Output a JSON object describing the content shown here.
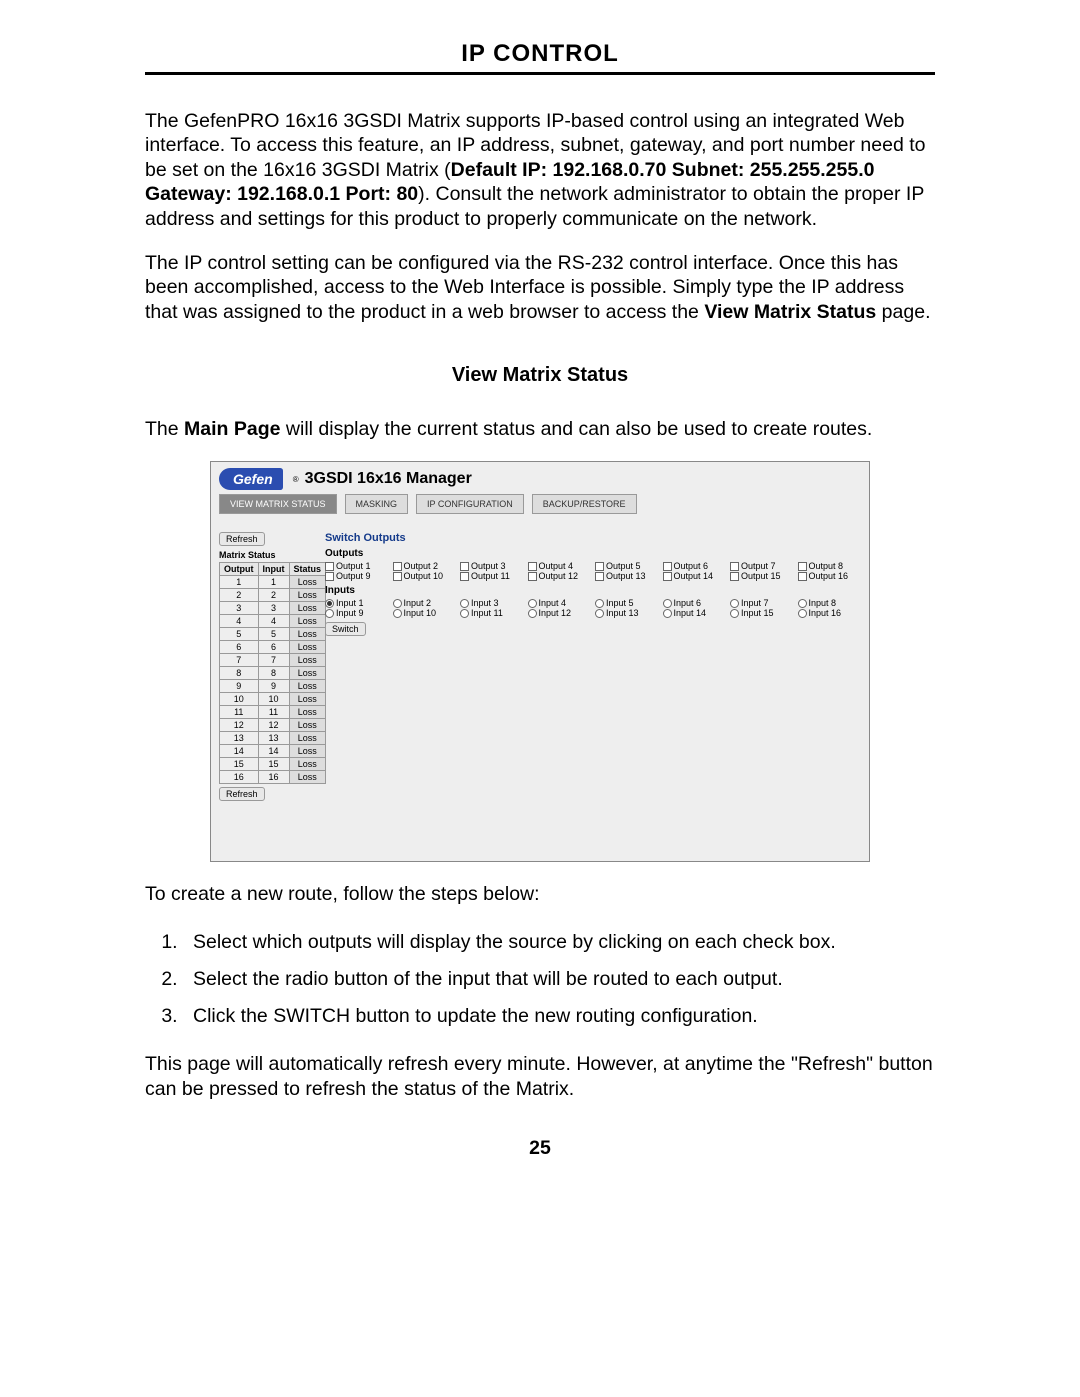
{
  "page": {
    "title": "IP CONTROL",
    "number": "25"
  },
  "paragraphs": {
    "p1a": "The GefenPRO 16x16 3GSDI Matrix supports IP-based control using an integrated Web interface. To access this feature, an IP address, subnet, gateway, and port number need to be set on the 16x16 3GSDI Matrix (",
    "p1b_bold": "Default IP: 192.168.0.70 Subnet: 255.255.255.0 Gateway: 192.168.0.1 Port: 80",
    "p1c": "). Consult the network administrator to obtain the proper IP address and settings for this product to properly communicate on the network.",
    "p2a": "The IP control setting can be configured via the RS-232 control interface. Once this has been accomplished, access to the Web Interface is possible. Simply type the IP address that was assigned to the product in a web browser to access the ",
    "p2b_bold": "View Matrix Status",
    "p2c": " page.",
    "section_heading": "View Matrix Status",
    "p3a": "The ",
    "p3b_bold": "Main Page",
    "p3c": " will display the current status and can also be used to create routes.",
    "p4": "To create a new route, follow the steps below:",
    "p5": "This page will automatically refresh every minute.  However, at anytime the \"Refresh\" button can be pressed to refresh the status of the Matrix."
  },
  "steps": {
    "s1": "Select which outputs will display the source by clicking on each check box.",
    "s2": "Select the radio button of the input that will be routed to each output.",
    "s3": "Click the SWITCH button to update the new routing configuration."
  },
  "screenshot": {
    "logo_text": "Gefen",
    "app_name": "3GSDI 16x16 Manager",
    "tabs": [
      "VIEW MATRIX STATUS",
      "MASKING",
      "IP CONFIGURATION",
      "BACKUP/RESTORE"
    ],
    "active_tab": 0,
    "btn_refresh": "Refresh",
    "btn_switch": "Switch",
    "matrix_caption": "Matrix Status",
    "matrix_headers": [
      "Output",
      "Input",
      "Status"
    ],
    "matrix_rows": [
      [
        "1",
        "1",
        "Loss"
      ],
      [
        "2",
        "2",
        "Loss"
      ],
      [
        "3",
        "3",
        "Loss"
      ],
      [
        "4",
        "4",
        "Loss"
      ],
      [
        "5",
        "5",
        "Loss"
      ],
      [
        "6",
        "6",
        "Loss"
      ],
      [
        "7",
        "7",
        "Loss"
      ],
      [
        "8",
        "8",
        "Loss"
      ],
      [
        "9",
        "9",
        "Loss"
      ],
      [
        "10",
        "10",
        "Loss"
      ],
      [
        "11",
        "11",
        "Loss"
      ],
      [
        "12",
        "12",
        "Loss"
      ],
      [
        "13",
        "13",
        "Loss"
      ],
      [
        "14",
        "14",
        "Loss"
      ],
      [
        "15",
        "15",
        "Loss"
      ],
      [
        "16",
        "16",
        "Loss"
      ]
    ],
    "so_title": "Switch Outputs",
    "outputs_label": "Outputs",
    "inputs_label": "Inputs",
    "outputs": [
      "Output 1",
      "Output 2",
      "Output 3",
      "Output 4",
      "Output 5",
      "Output 6",
      "Output 7",
      "Output 8",
      "Output 9",
      "Output 10",
      "Output 11",
      "Output 12",
      "Output 13",
      "Output 14",
      "Output 15",
      "Output 16"
    ],
    "inputs": [
      "Input 1",
      "Input 2",
      "Input 3",
      "Input 4",
      "Input 5",
      "Input 6",
      "Input 7",
      "Input 8",
      "Input 9",
      "Input 10",
      "Input 11",
      "Input 12",
      "Input 13",
      "Input 14",
      "Input 15",
      "Input 16"
    ],
    "selected_input": 0,
    "colors": {
      "logo_bg": "#2b4db0",
      "so_title": "#143a8a",
      "panel_bg": "#eeeeee"
    }
  }
}
